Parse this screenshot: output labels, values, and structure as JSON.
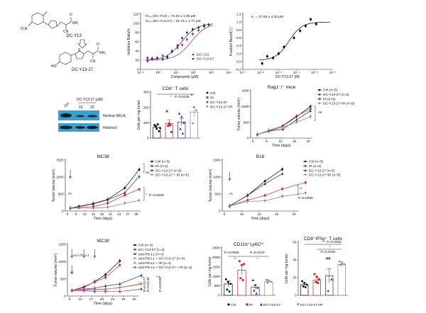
{
  "chemistry": {
    "compound1": "DC-Y13",
    "compound2": "DC-Y13-27",
    "groups": {
      "nitro": "O₂N",
      "amide": "NH₂",
      "nitrile": "CN",
      "oxygen": "O",
      "hydroxy": "HO",
      "sulfur": "S"
    },
    "arrow_icon": "hollow-down-arrow"
  },
  "western_blot": {
    "treatment_label": "DC-Y13-27 (μM)",
    "lanes": [
      "Ctrl",
      "10",
      "20"
    ],
    "bands": [
      "Nuclear RELA",
      "Histone3"
    ],
    "band_intensity": {
      "Nuclear RELA": [
        1.0,
        0.45,
        0.55
      ],
      "Histone3": [
        1.0,
        0.9,
        0.95
      ]
    },
    "blot_color": "#3d9fd0"
  },
  "chart_data": [
    {
      "type": "scatter",
      "xscale": "log",
      "xlim": [
        0.1,
        10000
      ],
      "xticks": [
        0.1,
        1,
        10,
        100,
        1000,
        10000
      ],
      "xtick_labels": [
        "10⁻¹",
        "10⁰",
        "10¹",
        "10²",
        "10³",
        "10⁴"
      ],
      "ylim": [
        0,
        120
      ],
      "yticks": [
        0,
        20,
        40,
        60,
        80,
        100,
        120
      ],
      "xlabel": "Compounds (μM)",
      "ylabel": "Inhibition Ratio%",
      "annotations": [
        {
          "text": "IC₅₀ (DC-Y13) = 74.64 ± 1.88 μM"
        },
        {
          "text": "IC₅₀ (DC-Y13-27) = 21.75 ± 1.77 μM"
        }
      ],
      "legend_position": "bottom-right",
      "series": [
        {
          "name": "DC-Y13",
          "color": "#a52a2a",
          "marker": "circle",
          "x": [
            0.25,
            0.45,
            0.87,
            1.8,
            3.3,
            6.0,
            12.6,
            23,
            43,
            91,
            195,
            407,
            741
          ],
          "y": [
            18,
            22,
            24,
            30,
            28,
            38,
            47,
            53,
            65,
            77,
            85,
            93,
            97
          ],
          "fit_ic50": 74.64
        },
        {
          "name": "DC-Y13-27",
          "color": "#1f1f8f",
          "marker": "circle",
          "x": [
            0.25,
            0.45,
            0.87,
            1.8,
            3.3,
            6.0,
            12.6,
            23,
            43,
            91,
            195,
            407,
            741
          ],
          "y": [
            25,
            24,
            25,
            22,
            26,
            40,
            52,
            68,
            80,
            87,
            91,
            96,
            97
          ],
          "fit_ic50": 21.75
        }
      ]
    },
    {
      "type": "scatter",
      "xscale": "log",
      "xlim": [
        1e-07,
        0.01
      ],
      "xticks": [
        1e-07,
        1e-06,
        1e-05,
        0.0001,
        0.001,
        0.01
      ],
      "xtick_labels": [
        "10⁻⁷",
        "10⁻⁶",
        "10⁻⁵",
        "10⁻⁴",
        "10⁻³",
        "10⁻²"
      ],
      "ylim": [
        -0.2,
        1.2
      ],
      "yticks": [
        -0.2,
        0.0,
        0.2,
        0.4,
        0.6,
        0.8,
        1.0,
        1.2
      ],
      "ytick_labels": [
        "-0.2",
        "0.0",
        "0.2",
        "0.4",
        "0.6",
        "0.8",
        "1.0",
        "1.2"
      ],
      "xlabel": "DC-Y13-27 (M)",
      "ylabel": "Fraction Bound [-]",
      "annotations": [
        {
          "text": "K꜀ = 37.93 ± 4.33 μM"
        }
      ],
      "series": [
        {
          "color": "#000000",
          "marker": "square",
          "x": [
            1.2e-06,
            2.3e-06,
            4.9e-06,
            1e-05,
            2e-05,
            7.2e-05,
            0.00016,
            0.00032,
            0.00062,
            0.00126
          ],
          "y": [
            -0.05,
            0.13,
            0.09,
            0.2,
            0.37,
            0.6,
            0.78,
            0.9,
            1.07,
            0.95
          ],
          "fit_kd": 3.793e-05
        }
      ]
    },
    {
      "type": "bar",
      "title": "CD8⁺ T cells",
      "ylabel": "Cells per mg tumor",
      "ylim": [
        0,
        300
      ],
      "yticks": [
        0,
        100,
        200,
        300
      ],
      "categories": [
        "Ctrl",
        "IR",
        "DC-Y13-27",
        "DC-Y13-27+IR"
      ],
      "colors": [
        "#000000",
        "#d7191c",
        "#1f1fb4",
        "#808080"
      ],
      "markers": [
        "circle",
        "square",
        "triangle-up",
        "triangle-down"
      ],
      "values": [
        70,
        95,
        105,
        170
      ],
      "errors": [
        15,
        25,
        22,
        32
      ],
      "points": [
        [
          85,
          60,
          45,
          75,
          90,
          65
        ],
        [
          175,
          95,
          40,
          80,
          85
        ],
        [
          160,
          140,
          100,
          60,
          30
        ],
        [
          280,
          200,
          180,
          95
        ]
      ],
      "annotations": [
        {
          "text": "*"
        },
        {
          "text": "P=0.0238"
        }
      ],
      "legend_position": "right"
    },
    {
      "type": "line",
      "title": "Rag1⁻/⁻ mice",
      "xlabel": "Time (days)",
      "ylabel": "Tumor volume (mm³)",
      "xticks": [
        0,
        6,
        12,
        18,
        24
      ],
      "ylim": [
        0,
        1500
      ],
      "yticks": [
        0,
        500,
        1000,
        1500
      ],
      "annotations": [
        {
          "text": "ns"
        }
      ],
      "legend_position": "right",
      "series": [
        {
          "name": "Ctrl (n=5)",
          "color": "#000000",
          "marker": "circle",
          "x": [
            2,
            7,
            13,
            19,
            25
          ],
          "y": [
            110,
            240,
            380,
            680,
            1000
          ]
        },
        {
          "name": "DC-Y13-27 (n=5)",
          "color": "#1f1fb4",
          "marker": "triangle-up",
          "x": [
            2,
            7,
            13,
            19,
            25
          ],
          "y": [
            110,
            220,
            280,
            580,
            860
          ]
        },
        {
          "name": "IR (n=5)",
          "color": "#c0282d",
          "marker": "square",
          "x": [
            2,
            7,
            13,
            19,
            25
          ],
          "y": [
            110,
            220,
            390,
            700,
            920
          ]
        },
        {
          "name": "DC-Y13-27+IR (n=5)",
          "color": "#808080",
          "marker": "triangle-down",
          "x": [
            2,
            7,
            13,
            19,
            25
          ],
          "y": [
            110,
            230,
            340,
            500,
            680
          ]
        }
      ]
    },
    {
      "type": "line",
      "title": "MC38",
      "xlabel": "Time (days)",
      "ylabel": "Tumor volume (mm³)",
      "xticks": [
        0,
        9,
        12,
        15,
        18,
        21,
        24,
        27,
        30
      ],
      "ylim": [
        0,
        1500
      ],
      "yticks": [
        0,
        500,
        1000,
        1500
      ],
      "annotations": [
        {
          "text": "ns"
        },
        {
          "text": "*"
        },
        {
          "text": "P=0.0339"
        },
        {
          "text": "IR"
        }
      ],
      "legend_position": "right",
      "series": [
        {
          "name": "Ctrl (n=5)",
          "color": "#000000",
          "marker": "circle",
          "x": [
            3,
            10,
            15,
            20,
            26,
            31
          ],
          "y": [
            80,
            140,
            220,
            340,
            680,
            1220
          ]
        },
        {
          "name": "IR (n=5)",
          "color": "#e0201b",
          "marker": "square",
          "x": [
            3,
            10,
            15,
            20,
            26,
            31
          ],
          "y": [
            80,
            100,
            130,
            230,
            470,
            640
          ]
        },
        {
          "name": "DC-Y13-27 (n=5)",
          "color": "#1f1fb4",
          "marker": "triangle-up",
          "x": [
            3,
            10,
            15,
            20,
            26,
            31
          ],
          "y": [
            80,
            130,
            210,
            330,
            540,
            1020
          ]
        },
        {
          "name": "DC-Y13-27 + IR (n=5)",
          "color": "#808080",
          "marker": "triangle-down",
          "x": [
            3,
            10,
            15,
            20,
            26,
            31
          ],
          "y": [
            80,
            90,
            80,
            110,
            230,
            310
          ]
        }
      ]
    },
    {
      "type": "line",
      "title": "B16",
      "xlabel": "Time (days)",
      "ylabel": "Tumor volume (mm³)",
      "xticks": [
        0,
        10,
        13,
        16,
        19
      ],
      "ylim": [
        0,
        1500
      ],
      "yticks": [
        0,
        500,
        1000,
        1500
      ],
      "annotations": [
        {
          "text": "**"
        },
        {
          "text": "P=0.0098"
        },
        {
          "text": "IR"
        }
      ],
      "legend_position": "right",
      "series": [
        {
          "name": "Ctrl (n=5)",
          "color": "#000000",
          "marker": "circle",
          "x": [
            3,
            11,
            14,
            17
          ],
          "y": [
            150,
            460,
            880,
            1230
          ]
        },
        {
          "name": "IR (n=5)",
          "color": "#e0201b",
          "marker": "square",
          "x": [
            3,
            11,
            14,
            17,
            21
          ],
          "y": [
            150,
            320,
            460,
            650,
            840
          ]
        },
        {
          "name": "DC-Y13-27 (n=5)",
          "color": "#1f1fb4",
          "marker": "triangle-up",
          "x": [
            3,
            11,
            14,
            17
          ],
          "y": [
            150,
            460,
            800,
            1100
          ]
        },
        {
          "name": "DC-Y13-27+IR (n=5)",
          "color": "#808080",
          "marker": "triangle-down",
          "x": [
            3,
            11,
            14,
            17,
            21
          ],
          "y": [
            150,
            280,
            300,
            430,
            530
          ]
        }
      ]
    },
    {
      "type": "line",
      "title": "MC38",
      "xlabel": "Time (days)",
      "ylabel": "Tumor volume (mm³)",
      "xticks": [
        0,
        14,
        17,
        20,
        23,
        26,
        29
      ],
      "ylim": [
        0,
        1500
      ],
      "yticks": [
        0,
        500,
        1000,
        1500
      ],
      "annotations": [
        {
          "text": "anti-PD-L1"
        },
        {
          "text": "IR"
        },
        {
          "text": "*"
        },
        {
          "text": "P=0.0177"
        },
        {
          "text": "*"
        },
        {
          "text": "P=0.0149"
        },
        {
          "text": "***"
        },
        {
          "text": "P=0.0008"
        }
      ],
      "legend_position": "right",
      "series": [
        {
          "name": "Ctrl (n=4)",
          "color": "#000000",
          "marker": "circle",
          "x": [
            3,
            15,
            18,
            21,
            25
          ],
          "y": [
            160,
            250,
            420,
            620,
            1020
          ]
        },
        {
          "name": "DC-Y13-27 (n=4)",
          "color": "#e0201b",
          "marker": "square",
          "x": [
            3,
            15,
            18,
            21,
            25
          ],
          "y": [
            160,
            270,
            410,
            540,
            900
          ]
        },
        {
          "name": "anti-PD-L1 (n=4)",
          "color": "#1f1fb4",
          "marker": "triangle-up",
          "x": [
            3,
            15,
            18,
            21,
            25,
            31
          ],
          "y": [
            160,
            200,
            230,
            290,
            350,
            600
          ]
        },
        {
          "name": "anti-PD-L1 + DC-Y13-27 (n=4)",
          "color": "#808080",
          "marker": "triangle-down",
          "x": [
            3,
            15,
            18,
            21,
            25,
            31
          ],
          "y": [
            160,
            190,
            200,
            200,
            240,
            340
          ]
        },
        {
          "name": "anti-PD-L1 + IR (n=4)",
          "color": "#d2782d",
          "marker": "diamond",
          "x": [
            3,
            15,
            18,
            21,
            25,
            31
          ],
          "y": [
            160,
            180,
            180,
            190,
            250,
            360
          ]
        },
        {
          "name": "anti-PD-L1 + DC-Y13-27 + IR (n=4)",
          "color": "#a020c8",
          "marker": "circle",
          "x": [
            3,
            15,
            18,
            21,
            25,
            31
          ],
          "y": [
            160,
            160,
            130,
            130,
            130,
            200
          ]
        }
      ]
    },
    {
      "type": "bar",
      "title": "CD11b⁺Ly6Cʰⁱ",
      "ylabel": "Cells per mg tumor",
      "ylim": [
        0,
        2500
      ],
      "yticks": [
        0,
        500,
        1000,
        1500,
        2000,
        2500
      ],
      "categories": [
        "Ctrl",
        "IR",
        "DC-Y13-27",
        "DC-Y13-27+IR"
      ],
      "colors": [
        "#000000",
        "#d7191c",
        "#1f1fb4",
        "#808080"
      ],
      "markers": [
        "circle",
        "square",
        "triangle-up",
        "triangle-down"
      ],
      "values": [
        600,
        1320,
        420,
        720
      ],
      "errors": [
        150,
        250,
        120,
        60
      ],
      "points": [
        [
          850,
          700,
          600,
          300,
          200
        ],
        [
          1800,
          1600,
          1650,
          900,
          800
        ],
        [
          800,
          550,
          400,
          250,
          100
        ],
        [
          800,
          780,
          700,
          650
        ]
      ],
      "annotations": [
        {
          "text": "P=0.0066"
        },
        {
          "text": "P=0.0370"
        },
        {
          "text": "**"
        },
        {
          "text": "*"
        }
      ],
      "legend_position": "bottom"
    },
    {
      "type": "bar",
      "title": "CD8⁺IFNγ⁺ T cells",
      "ylabel": "Cells per mg tumor",
      "ylim": [
        0,
        60
      ],
      "yticks": [
        0,
        20,
        40,
        60
      ],
      "categories": [
        "Ctrl",
        "IR",
        "DC-Y13-27",
        "DC-Y13-27+IR"
      ],
      "colors": [
        "#000000",
        "#d7191c",
        "#1f1fb4",
        "#808080"
      ],
      "markers": [
        "circle",
        "square",
        "triangle-up",
        "triangle-down"
      ],
      "values": [
        12,
        17,
        22,
        35
      ],
      "errors": [
        2,
        3,
        8,
        3
      ],
      "points": [
        [
          16,
          14,
          12,
          10,
          9
        ],
        [
          24,
          21,
          18,
          15,
          14
        ],
        [
          42,
          42,
          18,
          5
        ],
        [
          38,
          36,
          35,
          34
        ]
      ],
      "annotations": [
        {
          "text": "**"
        },
        {
          "text": "P=0.0092"
        },
        {
          "text": "*"
        },
        {
          "text": "P=0.0466"
        }
      ],
      "legend_position": "bottom"
    }
  ]
}
